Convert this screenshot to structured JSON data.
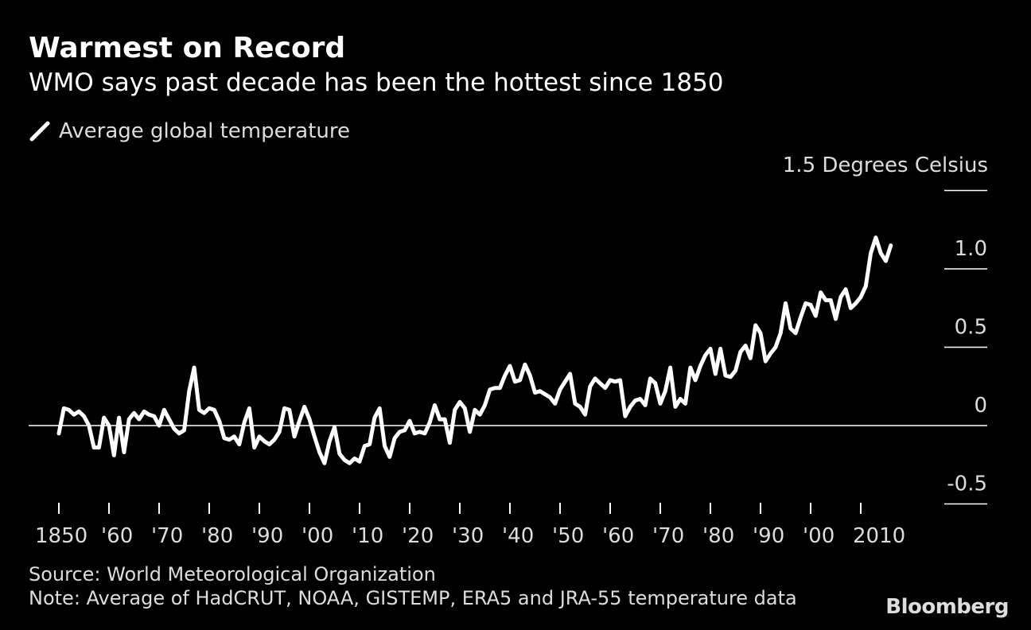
{
  "title": "Warmest on Record",
  "subtitle": "WMO says past decade has been the hottest since 1850",
  "legend_label": "Average global temperature",
  "ylabel": "1.5 Degrees Celsius",
  "source": "Source: World Meteorological Organization",
  "note": "Note: Average of HadCRUT, NOAA, GISTEMP, ERA5 and JRA-55 temperature data",
  "logo": "Bloomberg",
  "colors": {
    "background": "#000000",
    "line": "#ffffff",
    "text": "#dddddd"
  },
  "chart_data": {
    "type": "line",
    "title": "Warmest on Record",
    "subtitle": "WMO says past decade has been the hottest since 1850",
    "xlabel": "",
    "ylabel": "1.5 Degrees Celsius",
    "xlim": [
      1845,
      2023
    ],
    "ylim": [
      -0.5,
      1.5
    ],
    "yticks": [
      -0.5,
      0,
      0.5,
      1.0,
      1.5
    ],
    "ytick_labels": [
      "-0.5",
      "0",
      "0.5",
      "1.0",
      ""
    ],
    "xticks": [
      1850,
      1860,
      1870,
      1880,
      1890,
      1900,
      1910,
      1920,
      1930,
      1940,
      1950,
      1960,
      1970,
      1980,
      1990,
      2000,
      2010
    ],
    "xtick_labels": [
      "1850",
      "'60",
      "'70",
      "'80",
      "'90",
      "'00",
      "'10",
      "'20",
      "'30",
      "'40",
      "'50",
      "'60",
      "'70",
      "'80",
      "'90",
      "'00",
      "2010"
    ],
    "grid": false,
    "legend": "top-left",
    "series": [
      {
        "name": "Average global temperature",
        "x_start": 1850,
        "values": [
          -0.05,
          0.11,
          0.1,
          0.07,
          0.09,
          0.06,
          0.0,
          -0.14,
          -0.14,
          0.05,
          0.0,
          -0.19,
          0.05,
          -0.17,
          0.04,
          0.08,
          0.04,
          0.09,
          0.07,
          0.06,
          0.0,
          0.1,
          0.04,
          -0.02,
          -0.05,
          -0.03,
          0.22,
          0.37,
          0.1,
          0.08,
          0.11,
          0.1,
          0.03,
          -0.08,
          -0.09,
          -0.07,
          -0.12,
          0.02,
          0.11,
          -0.14,
          -0.07,
          -0.1,
          -0.12,
          -0.09,
          -0.04,
          0.11,
          0.1,
          -0.07,
          0.03,
          0.12,
          0.04,
          -0.07,
          -0.17,
          -0.24,
          -0.1,
          -0.01,
          -0.18,
          -0.22,
          -0.24,
          -0.21,
          -0.23,
          -0.13,
          -0.12,
          0.05,
          0.11,
          -0.13,
          -0.2,
          -0.08,
          -0.04,
          -0.03,
          0.03,
          -0.05,
          -0.04,
          -0.05,
          0.02,
          0.13,
          0.04,
          0.04,
          -0.11,
          0.1,
          0.15,
          0.11,
          -0.04,
          0.1,
          0.07,
          0.13,
          0.23,
          0.24,
          0.24,
          0.32,
          0.38,
          0.28,
          0.29,
          0.39,
          0.32,
          0.21,
          0.22,
          0.2,
          0.18,
          0.14,
          0.23,
          0.28,
          0.33,
          0.14,
          0.12,
          0.07,
          0.25,
          0.3,
          0.27,
          0.24,
          0.29,
          0.28,
          0.29,
          0.06,
          0.12,
          0.16,
          0.17,
          0.13,
          0.3,
          0.27,
          0.14,
          0.22,
          0.37,
          0.12,
          0.17,
          0.14,
          0.37,
          0.29,
          0.38,
          0.45,
          0.49,
          0.33,
          0.49,
          0.32,
          0.31,
          0.35,
          0.47,
          0.51,
          0.43,
          0.64,
          0.59,
          0.41,
          0.46,
          0.5,
          0.59,
          0.78,
          0.62,
          0.59,
          0.69,
          0.78,
          0.77,
          0.7,
          0.85,
          0.8,
          0.8,
          0.68,
          0.82,
          0.87,
          0.75,
          0.78,
          0.82,
          0.89,
          1.1,
          1.2,
          1.1,
          1.05,
          1.15
        ]
      }
    ]
  }
}
